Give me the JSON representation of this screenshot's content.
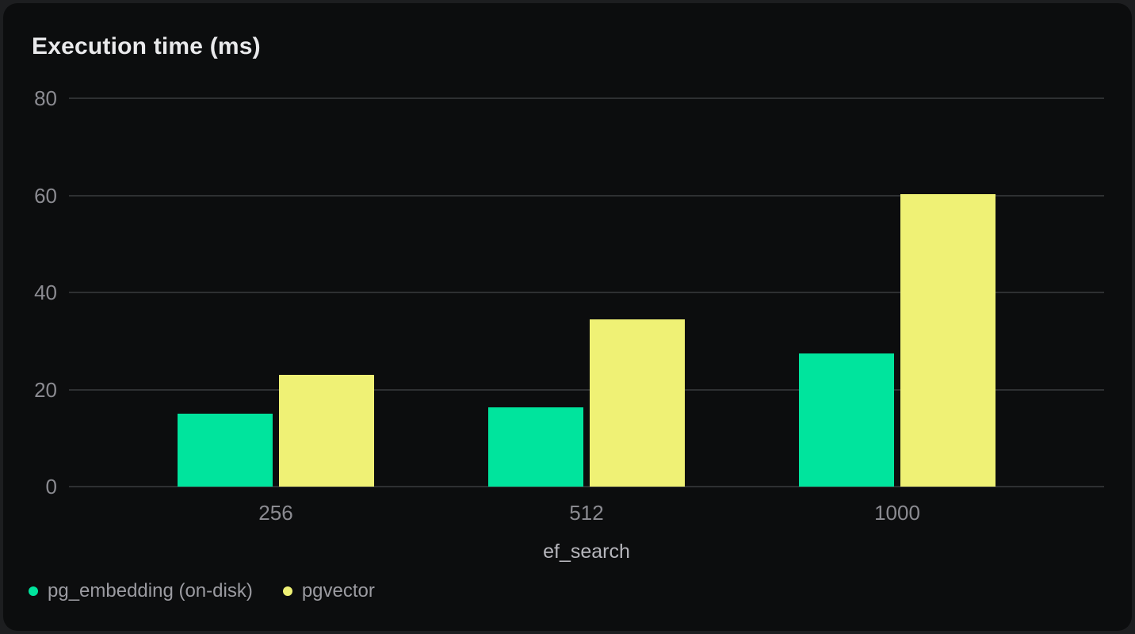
{
  "chart_data": {
    "type": "bar",
    "title": "Execution time (ms)",
    "xlabel": "ef_search",
    "ylabel": "",
    "categories": [
      "256",
      "512",
      "1000"
    ],
    "series": [
      {
        "name": "pg_embedding (on-disk)",
        "color": "#00e49d",
        "values": [
          15.1,
          16.3,
          27.4
        ]
      },
      {
        "name": "pgvector",
        "color": "#eff175",
        "values": [
          23,
          34.5,
          60.3
        ]
      }
    ],
    "ylim": [
      0,
      80
    ],
    "yticks": [
      0,
      20,
      40,
      60,
      80
    ],
    "grid": true,
    "legend_position": "bottom-left",
    "colors": {
      "page_background": "#1d1e20",
      "card_background": "#0c0d0e",
      "gridline": "#2e3032",
      "title_text": "#e9e9eb",
      "tick_text": "#8b8b91",
      "axis_label_text": "#b6b6bc",
      "legend_text": "#9b9ba1"
    }
  }
}
